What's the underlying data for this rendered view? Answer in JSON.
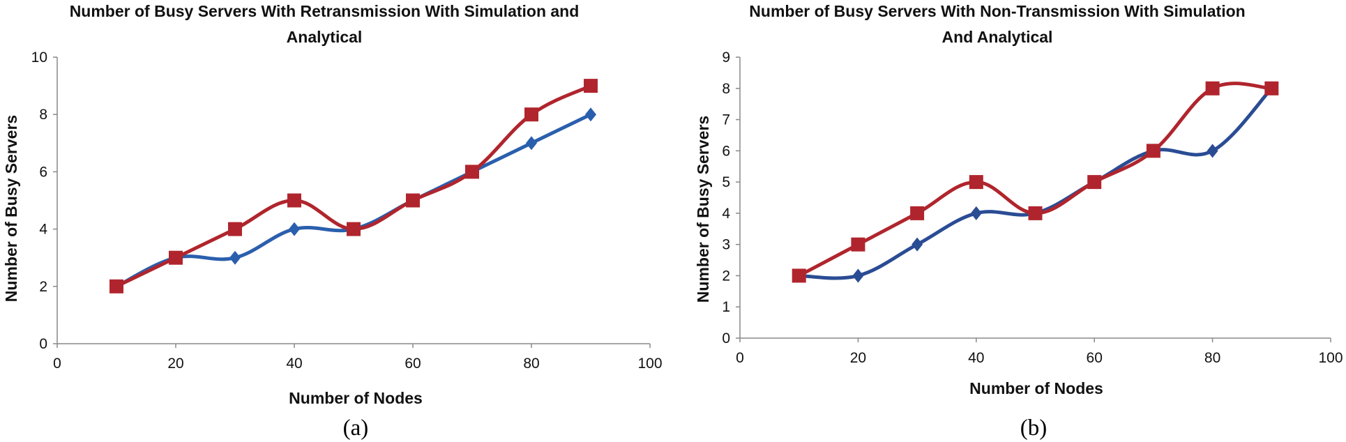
{
  "chart_data": [
    {
      "type": "line",
      "id": "a",
      "title": [
        "Number of Busy Servers With Retransmission  With Simulation  and",
        "Analytical"
      ],
      "xlabel": "Number of Nodes",
      "ylabel": "Number of Busy Servers",
      "panel_label": "(a)",
      "xlim": [
        0,
        100
      ],
      "ylim": [
        0,
        10
      ],
      "xticks": [
        0,
        20,
        40,
        60,
        80,
        100
      ],
      "yticks": [
        0,
        2,
        4,
        6,
        8,
        10
      ],
      "x": [
        10,
        20,
        30,
        40,
        50,
        60,
        70,
        80,
        90
      ],
      "series": [
        {
          "name": "series-1",
          "marker": "diamond",
          "color": "#2a5fad",
          "values": [
            2,
            3,
            3,
            4,
            4,
            5,
            6,
            7,
            8
          ]
        },
        {
          "name": "series-2",
          "marker": "square",
          "color": "#b0252d",
          "values": [
            2,
            3,
            4,
            5,
            4,
            5,
            6,
            8,
            9
          ]
        }
      ]
    },
    {
      "type": "line",
      "id": "b",
      "title": [
        "Number of Busy Servers With Non-Transmission  With Simulation",
        "And Analytical"
      ],
      "xlabel": "Number of Nodes",
      "ylabel": "Number of Busy Servers",
      "panel_label": "(b)",
      "xlim": [
        0,
        100
      ],
      "ylim": [
        0,
        9
      ],
      "xticks": [
        0,
        20,
        40,
        60,
        80,
        100
      ],
      "yticks": [
        0,
        1,
        2,
        3,
        4,
        5,
        6,
        7,
        8,
        9
      ],
      "x": [
        10,
        20,
        30,
        40,
        50,
        60,
        70,
        80,
        90
      ],
      "series": [
        {
          "name": "series-1",
          "marker": "diamond",
          "color": "#2a4c94",
          "values": [
            2,
            2,
            3,
            4,
            4,
            5,
            6,
            6,
            8
          ]
        },
        {
          "name": "series-2",
          "marker": "square",
          "color": "#b0252d",
          "values": [
            2,
            3,
            4,
            5,
            4,
            5,
            6,
            8,
            8
          ]
        }
      ]
    }
  ]
}
